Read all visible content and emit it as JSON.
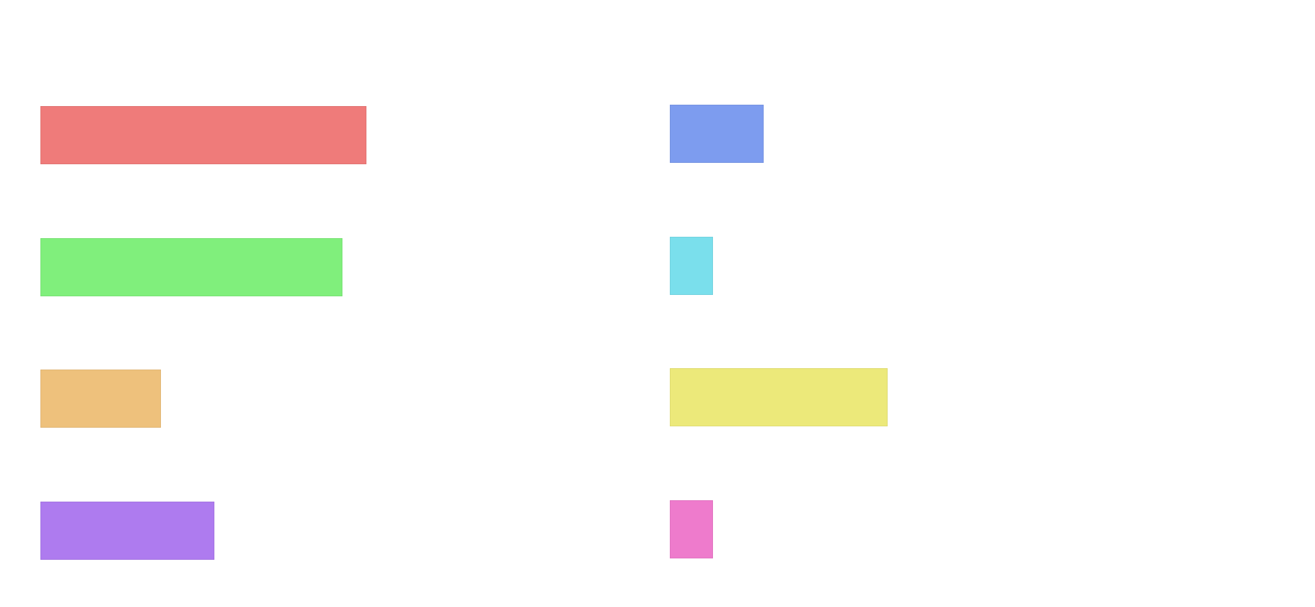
{
  "blocks": [
    {
      "id": "bar-red",
      "name": "red-block",
      "color": "#ef7b7a",
      "fill": 0.25
    },
    {
      "id": "bar-green",
      "name": "green-block",
      "color": "#80ef7c",
      "fill": 0.23
    },
    {
      "id": "bar-orange",
      "name": "orange-block",
      "color": "#eec17c",
      "fill": 0.09
    },
    {
      "id": "bar-purple",
      "name": "purple-block",
      "color": "#ae7bef",
      "fill": 0.13
    },
    {
      "id": "bar-blue",
      "name": "blue-block",
      "color": "#7d9cef",
      "fill": 0.07
    },
    {
      "id": "bar-cyan",
      "name": "cyan-block",
      "color": "#7adfec",
      "fill": 0.03
    },
    {
      "id": "bar-yellow",
      "name": "yellow-block",
      "color": "#ece97a",
      "fill": 0.17
    },
    {
      "id": "bar-pink",
      "name": "pink-block",
      "color": "#ee7bcc",
      "fill": 0.03
    }
  ]
}
